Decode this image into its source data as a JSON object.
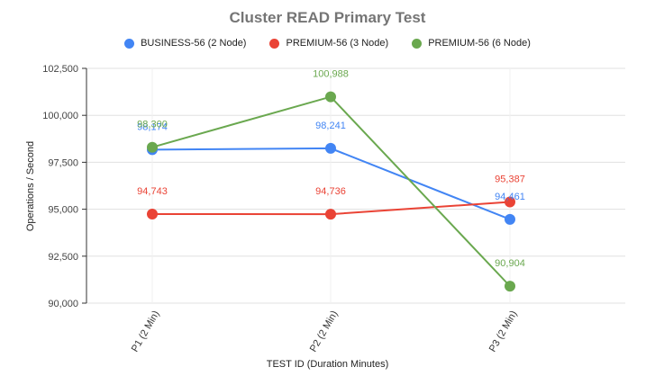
{
  "chart_data": {
    "type": "line",
    "title": "Cluster READ Primary Test",
    "xlabel": "TEST ID (Duration Minutes)",
    "ylabel": "Operations / Second",
    "categories": [
      "P1 (2 Min)",
      "P2 (2 Min)",
      "P3 (2 Min)"
    ],
    "ylim": [
      90000,
      102500
    ],
    "yticks": [
      90000,
      92500,
      95000,
      97500,
      100000,
      102500
    ],
    "ytick_labels": [
      "90,000",
      "92,500",
      "95,000",
      "97,500",
      "100,000",
      "102,500"
    ],
    "grid": true,
    "legend_position": "top",
    "series": [
      {
        "name": "BUSINESS-56 (2 Node)",
        "color": "#4285f4",
        "values": [
          98174,
          98241,
          94461
        ],
        "labels": [
          "98,174",
          "98,241",
          "94,461"
        ]
      },
      {
        "name": "PREMIUM-56 (3 Node)",
        "color": "#ea4335",
        "values": [
          94743,
          94736,
          95387
        ],
        "labels": [
          "94,743",
          "94,736",
          "95,387"
        ]
      },
      {
        "name": "PREMIUM-56 (6 Node)",
        "color": "#6aa84f",
        "values": [
          98300,
          100988,
          90904
        ],
        "labels": [
          "98,300",
          "100,988",
          "90,904"
        ]
      }
    ]
  }
}
